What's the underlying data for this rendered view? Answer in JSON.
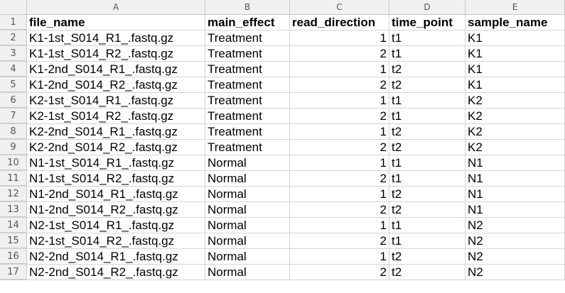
{
  "columns": [
    "A",
    "B",
    "C",
    "D",
    "E"
  ],
  "header": {
    "row_number": "1",
    "cells": [
      "file_name",
      "main_effect",
      "read_direction",
      "time_point",
      "sample_name"
    ]
  },
  "rows": [
    {
      "n": "2",
      "file_name": "K1-1st_S014_R1_.fastq.gz",
      "main_effect": "Treatment",
      "read_direction": "1",
      "time_point": "t1",
      "sample_name": "K1"
    },
    {
      "n": "3",
      "file_name": "K1-1st_S014_R2_.fastq.gz",
      "main_effect": "Treatment",
      "read_direction": "2",
      "time_point": "t1",
      "sample_name": "K1"
    },
    {
      "n": "4",
      "file_name": "K1-2nd_S014_R1_.fastq.gz",
      "main_effect": "Treatment",
      "read_direction": "1",
      "time_point": "t2",
      "sample_name": "K1"
    },
    {
      "n": "5",
      "file_name": "K1-2nd_S014_R2_.fastq.gz",
      "main_effect": "Treatment",
      "read_direction": "2",
      "time_point": "t2",
      "sample_name": "K1"
    },
    {
      "n": "6",
      "file_name": "K2-1st_S014_R1_.fastq.gz",
      "main_effect": "Treatment",
      "read_direction": "1",
      "time_point": "t1",
      "sample_name": "K2"
    },
    {
      "n": "7",
      "file_name": "K2-1st_S014_R2_.fastq.gz",
      "main_effect": "Treatment",
      "read_direction": "2",
      "time_point": "t1",
      "sample_name": "K2"
    },
    {
      "n": "8",
      "file_name": "K2-2nd_S014_R1_.fastq.gz",
      "main_effect": "Treatment",
      "read_direction": "1",
      "time_point": "t2",
      "sample_name": "K2"
    },
    {
      "n": "9",
      "file_name": "K2-2nd_S014_R2_.fastq.gz",
      "main_effect": "Treatment",
      "read_direction": "2",
      "time_point": "t2",
      "sample_name": "K2"
    },
    {
      "n": "10",
      "file_name": "N1-1st_S014_R1_.fastq.gz",
      "main_effect": "Normal",
      "read_direction": "1",
      "time_point": "t1",
      "sample_name": "N1"
    },
    {
      "n": "11",
      "file_name": "N1-1st_S014_R2_.fastq.gz",
      "main_effect": "Normal",
      "read_direction": "2",
      "time_point": "t1",
      "sample_name": "N1"
    },
    {
      "n": "12",
      "file_name": "N1-2nd_S014_R1_.fastq.gz",
      "main_effect": "Normal",
      "read_direction": "1",
      "time_point": "t2",
      "sample_name": "N1"
    },
    {
      "n": "13",
      "file_name": "N1-2nd_S014_R2_.fastq.gz",
      "main_effect": "Normal",
      "read_direction": "2",
      "time_point": "t2",
      "sample_name": "N1"
    },
    {
      "n": "14",
      "file_name": "N2-1st_S014_R1_.fastq.gz",
      "main_effect": "Normal",
      "read_direction": "1",
      "time_point": "t1",
      "sample_name": "N2"
    },
    {
      "n": "15",
      "file_name": "N2-1st_S014_R2_.fastq.gz",
      "main_effect": "Normal",
      "read_direction": "2",
      "time_point": "t1",
      "sample_name": "N2"
    },
    {
      "n": "16",
      "file_name": "N2-2nd_S014_R1_.fastq.gz",
      "main_effect": "Normal",
      "read_direction": "1",
      "time_point": "t2",
      "sample_name": "N2"
    },
    {
      "n": "17",
      "file_name": "N2-2nd_S014_R2_.fastq.gz",
      "main_effect": "Normal",
      "read_direction": "2",
      "time_point": "t2",
      "sample_name": "N2"
    }
  ]
}
